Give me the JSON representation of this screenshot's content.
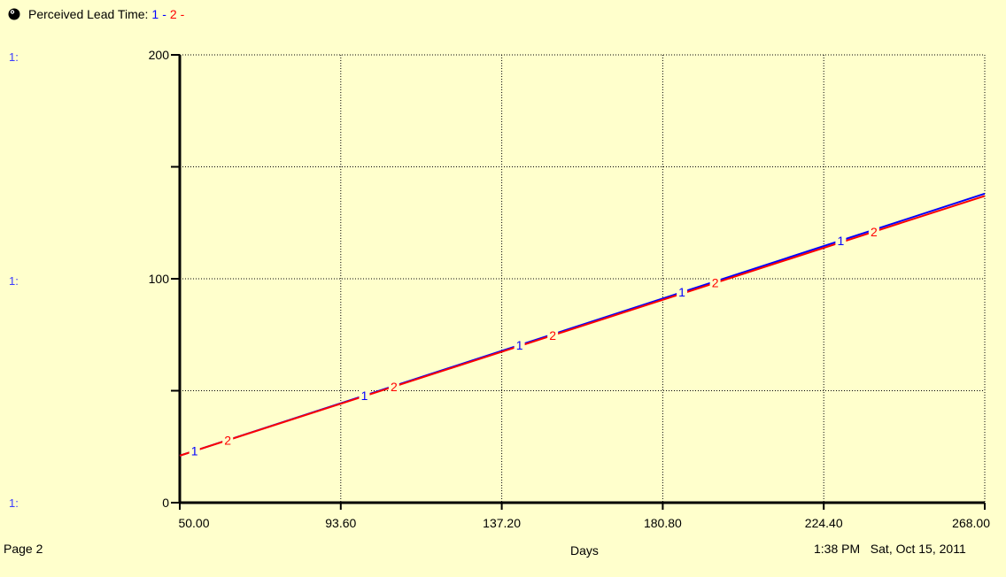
{
  "header": {
    "title": "Perceived Lead Time:",
    "series_marks": [
      "1",
      "2"
    ],
    "separator": "-"
  },
  "scale_labels": [
    "1:",
    "1:",
    "1:"
  ],
  "footer": {
    "page": "Page 2",
    "timestamp": "1:38 PM   Sat, Oct 15, 2011"
  },
  "colors": {
    "background": "#ffffcc",
    "series_1": "#0000ff",
    "series_2": "#ff0000",
    "axis": "#000000",
    "grid": "#000000"
  },
  "icons": {
    "title": "pin-icon"
  },
  "chart_data": {
    "type": "line",
    "xlabel": "Days",
    "ylabel": "",
    "xlim": [
      50,
      268
    ],
    "ylim": [
      0,
      200
    ],
    "x_ticks": [
      "50.00",
      "93.60",
      "137.20",
      "180.80",
      "224.40",
      "268.00"
    ],
    "y_ticks": [
      {
        "value": 0,
        "label": "0"
      },
      {
        "value": 50,
        "label": ""
      },
      {
        "value": 100,
        "label": "100"
      },
      {
        "value": 150,
        "label": ""
      },
      {
        "value": 200,
        "label": "200"
      }
    ],
    "grid": true,
    "series": [
      {
        "name": "1",
        "x": [
          50,
          268
        ],
        "y": [
          21,
          138
        ]
      },
      {
        "name": "2",
        "x": [
          50,
          268
        ],
        "y": [
          21,
          137
        ]
      }
    ],
    "series_markers": [
      {
        "series": "1",
        "x": [
          54,
          100,
          142,
          186,
          229
        ]
      },
      {
        "series": "2",
        "x": [
          63,
          108,
          151,
          195,
          238
        ]
      }
    ]
  }
}
